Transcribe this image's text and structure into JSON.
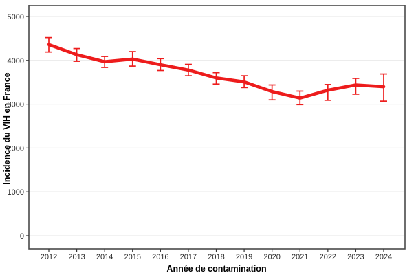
{
  "page": {
    "background_color": "#ffffff"
  },
  "chart_data": {
    "type": "line",
    "title": "",
    "xlabel": "Année de contamination",
    "ylabel": "Incidence du VIH en France",
    "x": [
      2012,
      2013,
      2014,
      2015,
      2016,
      2017,
      2018,
      2019,
      2020,
      2021,
      2022,
      2023,
      2024
    ],
    "series": [
      {
        "name": "Incidence du VIH en France",
        "color": "#ed1c1c",
        "values": [
          4360,
          4130,
          3970,
          4030,
          3900,
          3780,
          3600,
          3510,
          3290,
          3140,
          3320,
          3440,
          3400
        ],
        "ci_lower": [
          4190,
          3980,
          3840,
          3870,
          3770,
          3650,
          3460,
          3380,
          3100,
          2990,
          3090,
          3230,
          3070
        ],
        "ci_upper": [
          4520,
          4270,
          4090,
          4200,
          4040,
          3910,
          3720,
          3650,
          3440,
          3300,
          3450,
          3590,
          3690
        ]
      }
    ],
    "error_bars": true,
    "ylim": [
      0,
      5000
    ],
    "yticks": [
      0,
      1000,
      2000,
      3000,
      4000,
      5000
    ],
    "grid": "horizontal-major-only",
    "legend": "none",
    "panel_border_color": "#4a4a4a",
    "gridline_color": "#e9e9e9",
    "tick_mark_color": "#333333",
    "tick_label_color": "#2b2b2b",
    "axis_title_color": "#000000"
  }
}
